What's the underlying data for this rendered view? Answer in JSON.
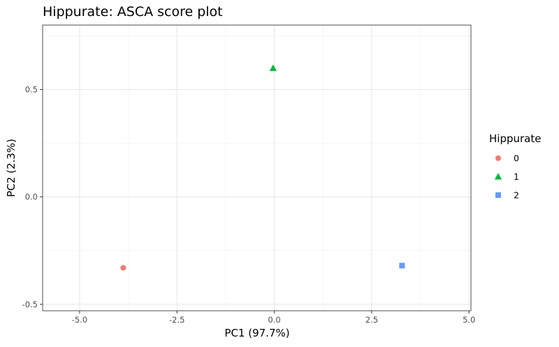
{
  "chart_data": {
    "type": "scatter",
    "title": "Hippurate: ASCA score plot",
    "xlabel": "PC1 (97.7%)",
    "ylabel": "PC2 (2.3%)",
    "xlim": [
      -5.95,
      5.05
    ],
    "ylim": [
      -0.53,
      0.8
    ],
    "x_ticks": [
      -5.0,
      -2.5,
      0.0,
      2.5,
      5.0
    ],
    "x_tick_labels": [
      "-5.0",
      "-2.5",
      "0.0",
      "2.5",
      "5.0"
    ],
    "y_ticks": [
      -0.5,
      0.0,
      0.5
    ],
    "y_tick_labels": [
      "-0.5",
      "0.0",
      "0.5"
    ],
    "grid": true,
    "legend": {
      "title": "Hippurate",
      "placement": "right"
    },
    "series": [
      {
        "name": "0",
        "shape": "circle",
        "color": "#F8766D",
        "x": [
          -3.88
        ],
        "y": [
          -0.33
        ]
      },
      {
        "name": "1",
        "shape": "triangle",
        "color": "#00BA38",
        "x": [
          -0.03
        ],
        "y": [
          0.6
        ]
      },
      {
        "name": "2",
        "shape": "square",
        "color": "#619CFF",
        "x": [
          3.28
        ],
        "y": [
          -0.32
        ]
      }
    ]
  }
}
